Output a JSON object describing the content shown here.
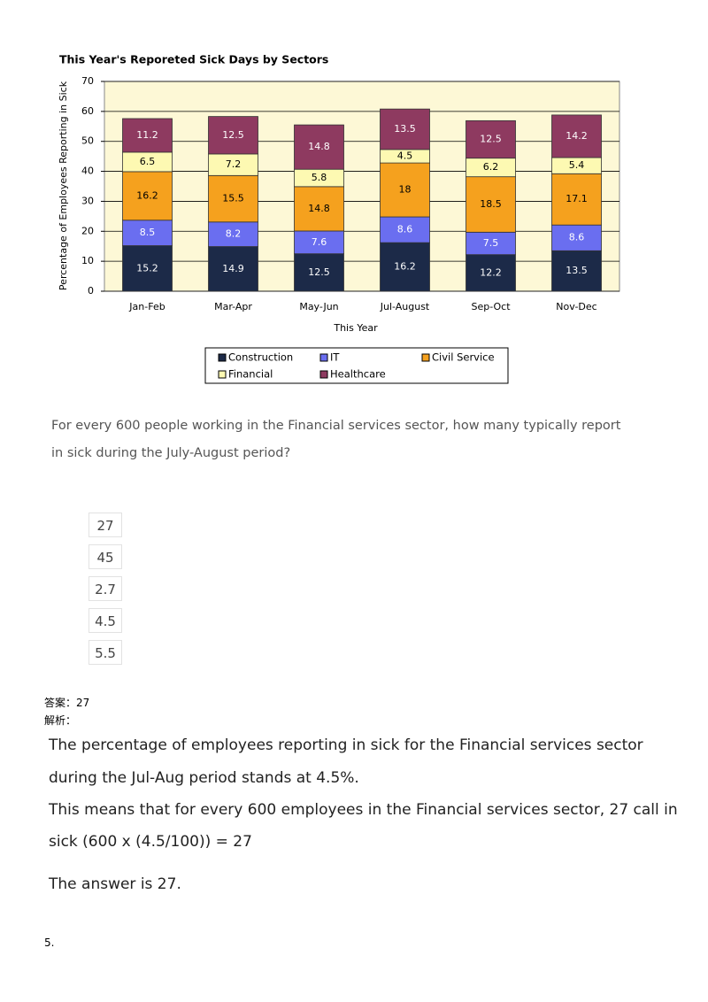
{
  "chart_data": {
    "type": "stacked_bar",
    "title": "This Year's Reporeted Sick Days by Sectors",
    "y_label": "Percentage of Employees Reporting in Sick",
    "x_label": "This Year",
    "categories": [
      "Jan-Feb",
      "Mar-Apr",
      "May-Jun",
      "Jul-August",
      "Sep-Oct",
      "Nov-Dec"
    ],
    "series": [
      {
        "name": "Construction",
        "color": "#1c2a48",
        "values": [
          15.2,
          14.9,
          12.5,
          16.2,
          12.2,
          13.5
        ]
      },
      {
        "name": "IT",
        "color": "#6a6ef0",
        "values": [
          8.5,
          8.2,
          7.6,
          8.6,
          7.5,
          8.6
        ]
      },
      {
        "name": "Civil Service",
        "color": "#f5a11e",
        "values": [
          16.2,
          15.5,
          14.8,
          18,
          18.5,
          17.1
        ]
      },
      {
        "name": "Financial",
        "color": "#fdf9b2",
        "values": [
          6.5,
          7.2,
          5.8,
          4.5,
          6.2,
          5.4
        ]
      },
      {
        "name": "Healthcare",
        "color": "#8e3a60",
        "values": [
          11.2,
          12.5,
          14.8,
          13.5,
          12.5,
          14.2
        ]
      }
    ],
    "ylim": [
      0,
      70
    ],
    "yticks": [
      0,
      10,
      20,
      30,
      40,
      50,
      60,
      70
    ],
    "grid": true,
    "plot_background": "#fdf8d6"
  },
  "question": "For every 600 people working in the Financial services sector, how many typically report in sick during the July-August period?",
  "options": [
    "27",
    "45",
    "2.7",
    "4.5",
    "5.5"
  ],
  "answer": "答案：27",
  "analysis_label": "解析：",
  "explanation": [
    "The percentage of employees reporting in sick for the Financial services sector",
    "during the Jul-Aug period stands at 4.5%.",
    "This means that for every 600 employees in the Financial services sector, 27 call in",
    "sick (600 x (4.5/100)) = 27",
    "The answer is 27."
  ],
  "footer": "5."
}
